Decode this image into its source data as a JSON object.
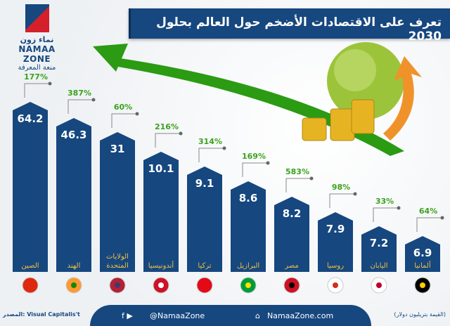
{
  "header": {
    "title": "تعرف على الاقتصادات الأضخم حول العالم بحلول 2030"
  },
  "logo": {
    "arabic_name": "نماء زون",
    "english_name": "NAMAA ZONE",
    "tagline": "منعة المعرفة"
  },
  "chart_data": {
    "type": "bar",
    "title": "تعرف على الاقتصادات الأضخم حول العالم بحلول 2030",
    "categories": [
      "الصين",
      "الهند",
      "الولايات المتحدة",
      "أندونيسيا",
      "تركيا",
      "البرازيل",
      "مصر",
      "روسيا",
      "اليابان",
      "ألمانيا"
    ],
    "values": [
      64.2,
      46.3,
      31,
      10.1,
      9.1,
      8.6,
      8.2,
      7.9,
      7.2,
      6.9
    ],
    "value_labels": [
      "64.2",
      "46.3",
      "31",
      "10.1",
      "9.1",
      "8.6",
      "8.2",
      "7.9",
      "7.2",
      "6.9"
    ],
    "growth_labels": [
      "177%",
      "387%",
      "60%",
      "216%",
      "314%",
      "169%",
      "583%",
      "98%",
      "33%",
      "64%"
    ],
    "flags": [
      "china-flag",
      "india-flag",
      "usa-flag",
      "indonesia-flag",
      "turkey-flag",
      "brazil-flag",
      "egypt-flag",
      "russia-flag",
      "japan-flag",
      "germany-flag"
    ],
    "unit": "(القيمة بتريليون دولار)",
    "colors": {
      "bar": "#16477f",
      "growth": "#3aa21c",
      "label": "#f0c040",
      "arrow": "#2a9b12"
    }
  },
  "footer": {
    "source": "المصدر: Visual Capitalis't",
    "social": "@NamaaZone",
    "website": "NamaaZone.com"
  }
}
